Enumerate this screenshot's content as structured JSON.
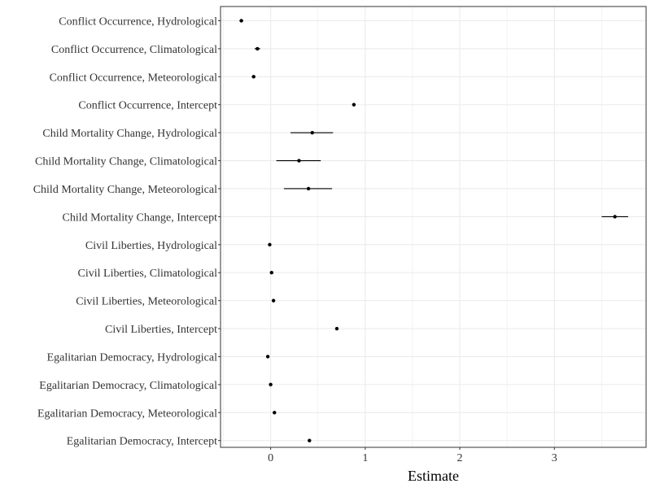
{
  "chart_data": {
    "type": "scatter",
    "title": "",
    "xlabel": "Estimate",
    "ylabel": "",
    "xlim": [
      -0.53,
      3.97
    ],
    "xticks": [
      0,
      1,
      2,
      3
    ],
    "grid": true,
    "point_color": "#000000",
    "errorbar_color": "#000000",
    "grid_color": "#ebebeb",
    "panel_border_color": "#333333",
    "categories": [
      "Conflict Occurrence, Hydrological",
      "Conflict Occurrence, Climatological",
      "Conflict Occurrence, Meteorological",
      "Conflict Occurrence, Intercept",
      "Child Mortality Change, Hydrological",
      "Child Mortality Change, Climatological",
      "Child Mortality Change, Meteorological",
      "Child Mortality Change, Intercept",
      "Civil Liberties, Hydrological",
      "Civil Liberties, Climatological",
      "Civil Liberties, Meteorological",
      "Civil Liberties, Intercept",
      "Egalitarian Democracy, Hydrological",
      "Egalitarian Democracy, Climatological",
      "Egalitarian Democracy, Meteorological",
      "Egalitarian Democracy, Intercept"
    ],
    "estimates": [
      -0.31,
      -0.14,
      -0.18,
      0.88,
      0.44,
      0.3,
      0.4,
      3.64,
      -0.01,
      0.01,
      0.03,
      0.7,
      -0.03,
      0.0,
      0.04,
      0.41
    ],
    "ci_low": [
      -0.33,
      -0.17,
      -0.2,
      0.87,
      0.21,
      0.06,
      0.14,
      3.5,
      -0.02,
      0.0,
      0.02,
      0.69,
      -0.04,
      -0.01,
      0.03,
      0.4
    ],
    "ci_high": [
      -0.29,
      -0.11,
      -0.16,
      0.89,
      0.66,
      0.53,
      0.65,
      3.78,
      0.0,
      0.02,
      0.04,
      0.71,
      -0.02,
      0.01,
      0.05,
      0.42
    ]
  }
}
